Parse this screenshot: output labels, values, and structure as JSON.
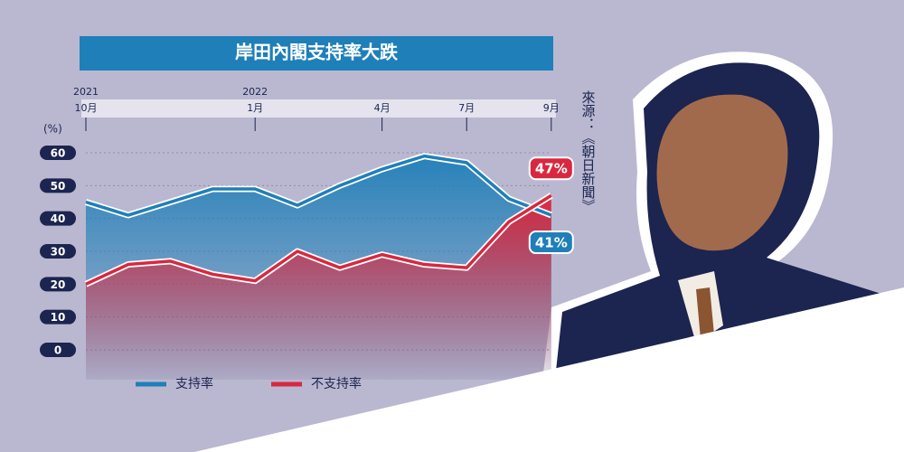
{
  "chart_data": {
    "type": "line",
    "title": "岸田內閣支持率大跌",
    "y_label": "(%)",
    "source": "來源：《朝日新聞》",
    "years": [
      "2021",
      null,
      null,
      null,
      "2022",
      null,
      null,
      null,
      null,
      null,
      null,
      null
    ],
    "categories": [
      "10月",
      null,
      null,
      null,
      "1月",
      null,
      null,
      "4月",
      null,
      "7月",
      null,
      "9月"
    ],
    "series": [
      {
        "name": "支持率",
        "color": "#1f7fb8",
        "values": [
          45,
          41,
          45,
          49,
          49,
          44,
          50,
          55,
          59,
          57,
          46,
          41
        ],
        "value_labels": [
          null,
          null,
          null,
          null,
          null,
          null,
          null,
          null,
          null,
          null,
          null,
          "41%"
        ]
      },
      {
        "name": "不支持率",
        "color": "#d8283f",
        "values": [
          20,
          26,
          27,
          23,
          21,
          30,
          25,
          29,
          26,
          25,
          39,
          47
        ],
        "value_labels": [
          null,
          null,
          null,
          null,
          null,
          null,
          null,
          null,
          null,
          null,
          null,
          "47%"
        ]
      }
    ],
    "ylim": [
      0,
      60
    ],
    "yticks": [
      0,
      10,
      20,
      30,
      40,
      50,
      60
    ],
    "grid": true
  }
}
